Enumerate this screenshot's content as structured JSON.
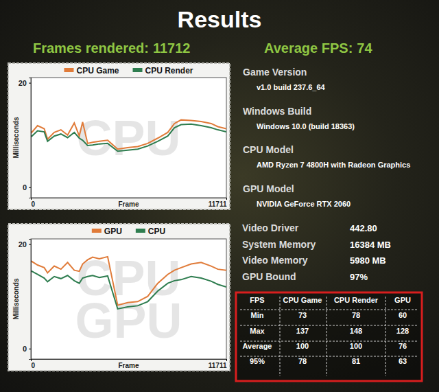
{
  "header": {
    "title": "Results",
    "stats": [
      {
        "label": "Frames rendered:",
        "value": 11712
      },
      {
        "label": "Average FPS:",
        "value": 74
      }
    ]
  },
  "info": [
    {
      "label": "Game Version",
      "value": "v1.0 build 237.6_64"
    },
    {
      "label": "Windows Build",
      "value": "Windows 10.0 (build 18363)"
    },
    {
      "label": "CPU Model",
      "value": "AMD Ryzen 7 4800H with Radeon Graphics"
    },
    {
      "label": "GPU Model",
      "value": "NVIDIA GeForce RTX 2060"
    },
    {
      "label": "Video Driver",
      "value": "442.80"
    },
    {
      "label": "System Memory",
      "value": "16384 MB"
    },
    {
      "label": "Video Memory",
      "value": "5980 MB"
    },
    {
      "label": "GPU Bound",
      "value": "97%"
    }
  ],
  "table": {
    "header": [
      "FPS",
      "CPU Game",
      "CPU Render",
      "GPU"
    ],
    "rows": [
      [
        "Min",
        73,
        78,
        60
      ],
      [
        "Max",
        137,
        148,
        128
      ],
      [
        "Average",
        100,
        100,
        76
      ],
      [
        "95%",
        78,
        81,
        63
      ]
    ]
  },
  "chart_data": [
    {
      "type": "line",
      "x_label": "Frame",
      "y_label": "Milliseconds",
      "annotations": [
        "CPU"
      ],
      "legend": "top",
      "x": [
        0,
        400,
        800,
        1000,
        1400,
        1800,
        2200,
        2600,
        2900,
        3100,
        3400,
        3700,
        4100,
        4600,
        5200,
        5800,
        6400,
        7000,
        7600,
        8200,
        8600,
        9000,
        9600,
        10200,
        10800,
        11200,
        11711
      ],
      "series": [
        {
          "name": "CPU Game",
          "color": "#e07b39",
          "values": [
            10.3,
            11.8,
            11.2,
            9.2,
            10.5,
            11.0,
            10.0,
            12.3,
            9.8,
            12.5,
            8.4,
            8.6,
            8.8,
            9.0,
            7.3,
            7.6,
            7.8,
            8.4,
            9.4,
            10.5,
            12.2,
            12.9,
            12.8,
            12.6,
            12.2,
            11.6,
            11.2
          ]
        },
        {
          "name": "CPU Render",
          "color": "#2e7d4f",
          "values": [
            9.6,
            10.8,
            10.6,
            8.8,
            9.8,
            10.2,
            9.5,
            10.5,
            9.4,
            9.0,
            8.0,
            8.1,
            8.3,
            8.4,
            6.9,
            7.1,
            7.3,
            7.9,
            8.8,
            9.8,
            11.4,
            12.0,
            12.1,
            11.8,
            11.4,
            11.0,
            10.6
          ]
        }
      ],
      "xlim": [
        0,
        11711
      ],
      "xticks": [
        0,
        11711
      ],
      "ylim": [
        -2,
        21
      ],
      "yticks": [
        0,
        20
      ]
    },
    {
      "type": "line",
      "x_label": "Frame",
      "y_label": "Milliseconds",
      "annotations": [
        "CPU",
        "GPU"
      ],
      "legend": "top",
      "x": [
        0,
        400,
        800,
        1000,
        1400,
        1800,
        2200,
        2600,
        2900,
        3100,
        3400,
        3700,
        4100,
        4600,
        5200,
        5800,
        6400,
        7000,
        7600,
        8200,
        8600,
        9000,
        9600,
        10200,
        10800,
        11200,
        11711
      ],
      "series": [
        {
          "name": "GPU",
          "color": "#e07b39",
          "values": [
            16.8,
            16.0,
            15.5,
            14.5,
            15.8,
            15.2,
            16.5,
            15.0,
            14.8,
            16.2,
            17.0,
            17.5,
            17.2,
            17.6,
            8.3,
            8.8,
            9.0,
            10.0,
            12.5,
            14.2,
            15.0,
            15.5,
            16.2,
            16.5,
            15.8,
            15.2,
            15.0
          ]
        },
        {
          "name": "CPU",
          "color": "#2e7d4f",
          "values": [
            14.9,
            14.2,
            13.5,
            12.8,
            13.8,
            13.4,
            14.0,
            13.0,
            12.5,
            13.5,
            13.8,
            14.0,
            13.6,
            13.9,
            7.6,
            8.0,
            8.2,
            9.0,
            11.0,
            12.5,
            13.0,
            13.2,
            13.8,
            13.5,
            12.9,
            12.3,
            11.8
          ]
        }
      ],
      "xlim": [
        0,
        11711
      ],
      "xticks": [
        0,
        11711
      ],
      "ylim": [
        -2,
        21
      ],
      "yticks": [
        0,
        20
      ]
    }
  ]
}
